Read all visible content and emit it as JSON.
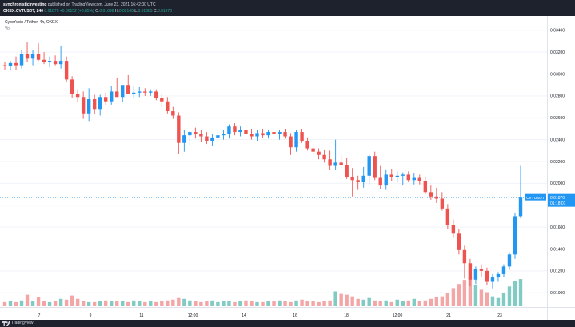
{
  "header": {
    "publisher": "synchronisticinvesting",
    "published_text": "published on TradingView.com, June 23, 2021 16:42:00 UTC",
    "symbol_info": "OKEX:CVTUSDT, 240",
    "last": "0.01870",
    "change": "+0.00152 (+8.85%)",
    "o_label": "O:",
    "o": "0.01698",
    "h_label": "H:",
    "h": "0.02160",
    "l_label": "L:",
    "l": "0.01685",
    "c_label": "C:",
    "c": "0.01870"
  },
  "legend": {
    "title": "CyberVein / Tether, 4h, OKEX",
    "vol": "Vol"
  },
  "price_tag": {
    "symbol": "CVTUSDT",
    "price": "0.01870",
    "countdown": "01:18:01"
  },
  "footer": {
    "brand": "TradingView"
  },
  "colors": {
    "up": "#2196f3",
    "down": "#ef5350",
    "vol_up": "#80cbc4",
    "vol_down": "#f4a6a6",
    "price_line": "#2196f3"
  },
  "chart_data": {
    "type": "candlestick",
    "symbol": "CVTUSDT",
    "timeframe": "240",
    "x_tick_labels": [
      "7",
      "9",
      "11",
      "12:00",
      "14",
      "16",
      "18",
      "12:00",
      "21",
      "23"
    ],
    "y_tick_labels": [
      "0.03400",
      "0.03200",
      "0.03000",
      "0.02800",
      "0.02600",
      "0.02400",
      "0.02200",
      "0.02000",
      "0.01800",
      "0.01600",
      "0.01400",
      "0.01200",
      "0.01000"
    ],
    "ylim": [
      0.0087,
      0.0353
    ],
    "current_price": 0.0187,
    "candles": [
      {
        "o": 0.0308,
        "h": 0.0311,
        "l": 0.0304,
        "c": 0.0307
      },
      {
        "o": 0.0307,
        "h": 0.0312,
        "l": 0.0303,
        "c": 0.031
      },
      {
        "o": 0.031,
        "h": 0.0316,
        "l": 0.0304,
        "c": 0.0308
      },
      {
        "o": 0.0308,
        "h": 0.0322,
        "l": 0.0305,
        "c": 0.0318
      },
      {
        "o": 0.0318,
        "h": 0.0329,
        "l": 0.0311,
        "c": 0.0314
      },
      {
        "o": 0.0314,
        "h": 0.0322,
        "l": 0.0308,
        "c": 0.0318
      },
      {
        "o": 0.0318,
        "h": 0.0328,
        "l": 0.0312,
        "c": 0.0313
      },
      {
        "o": 0.0313,
        "h": 0.032,
        "l": 0.0309,
        "c": 0.0311
      },
      {
        "o": 0.0311,
        "h": 0.0316,
        "l": 0.0306,
        "c": 0.0312
      },
      {
        "o": 0.0312,
        "h": 0.0317,
        "l": 0.0308,
        "c": 0.0309
      },
      {
        "o": 0.0309,
        "h": 0.0326,
        "l": 0.0305,
        "c": 0.0312
      },
      {
        "o": 0.0312,
        "h": 0.0316,
        "l": 0.0293,
        "c": 0.0295
      },
      {
        "o": 0.0295,
        "h": 0.0298,
        "l": 0.0278,
        "c": 0.0282
      },
      {
        "o": 0.0282,
        "h": 0.0286,
        "l": 0.0274,
        "c": 0.0279
      },
      {
        "o": 0.0279,
        "h": 0.0284,
        "l": 0.0259,
        "c": 0.0264
      },
      {
        "o": 0.0264,
        "h": 0.0287,
        "l": 0.0257,
        "c": 0.0277
      },
      {
        "o": 0.0277,
        "h": 0.0281,
        "l": 0.0263,
        "c": 0.0268
      },
      {
        "o": 0.0268,
        "h": 0.0281,
        "l": 0.0262,
        "c": 0.0279
      },
      {
        "o": 0.0279,
        "h": 0.0283,
        "l": 0.0272,
        "c": 0.0275
      },
      {
        "o": 0.0275,
        "h": 0.0289,
        "l": 0.0272,
        "c": 0.0284
      },
      {
        "o": 0.0284,
        "h": 0.0296,
        "l": 0.028,
        "c": 0.0279
      },
      {
        "o": 0.0279,
        "h": 0.0288,
        "l": 0.0274,
        "c": 0.029
      },
      {
        "o": 0.029,
        "h": 0.0299,
        "l": 0.0283,
        "c": 0.0282
      },
      {
        "o": 0.0282,
        "h": 0.0289,
        "l": 0.0278,
        "c": 0.0283
      },
      {
        "o": 0.0283,
        "h": 0.0288,
        "l": 0.0279,
        "c": 0.0284
      },
      {
        "o": 0.0284,
        "h": 0.0287,
        "l": 0.028,
        "c": 0.0283
      },
      {
        "o": 0.0283,
        "h": 0.0286,
        "l": 0.028,
        "c": 0.0284
      },
      {
        "o": 0.0284,
        "h": 0.0286,
        "l": 0.0276,
        "c": 0.0278
      },
      {
        "o": 0.0278,
        "h": 0.0282,
        "l": 0.027,
        "c": 0.0275
      },
      {
        "o": 0.0275,
        "h": 0.0279,
        "l": 0.0264,
        "c": 0.0266
      },
      {
        "o": 0.0266,
        "h": 0.027,
        "l": 0.0259,
        "c": 0.0262
      },
      {
        "o": 0.0262,
        "h": 0.0265,
        "l": 0.0227,
        "c": 0.0237
      },
      {
        "o": 0.0237,
        "h": 0.0249,
        "l": 0.0229,
        "c": 0.0244
      },
      {
        "o": 0.0244,
        "h": 0.0248,
        "l": 0.0235,
        "c": 0.0247
      },
      {
        "o": 0.0247,
        "h": 0.0251,
        "l": 0.0241,
        "c": 0.0245
      },
      {
        "o": 0.0245,
        "h": 0.0249,
        "l": 0.0238,
        "c": 0.0243
      },
      {
        "o": 0.0243,
        "h": 0.0247,
        "l": 0.0236,
        "c": 0.0239
      },
      {
        "o": 0.0239,
        "h": 0.0245,
        "l": 0.0234,
        "c": 0.0242
      },
      {
        "o": 0.0242,
        "h": 0.0249,
        "l": 0.0237,
        "c": 0.0244
      },
      {
        "o": 0.0244,
        "h": 0.0249,
        "l": 0.024,
        "c": 0.0245
      },
      {
        "o": 0.0245,
        "h": 0.0254,
        "l": 0.0241,
        "c": 0.0252
      },
      {
        "o": 0.0252,
        "h": 0.0255,
        "l": 0.0244,
        "c": 0.0247
      },
      {
        "o": 0.0247,
        "h": 0.0252,
        "l": 0.0243,
        "c": 0.0249
      },
      {
        "o": 0.0249,
        "h": 0.0252,
        "l": 0.0243,
        "c": 0.0245
      },
      {
        "o": 0.0245,
        "h": 0.025,
        "l": 0.024,
        "c": 0.0243
      },
      {
        "o": 0.0243,
        "h": 0.0249,
        "l": 0.0239,
        "c": 0.0246
      },
      {
        "o": 0.0246,
        "h": 0.025,
        "l": 0.0242,
        "c": 0.0244
      },
      {
        "o": 0.0244,
        "h": 0.0249,
        "l": 0.0241,
        "c": 0.0247
      },
      {
        "o": 0.0247,
        "h": 0.025,
        "l": 0.0242,
        "c": 0.0245
      },
      {
        "o": 0.0245,
        "h": 0.0249,
        "l": 0.024,
        "c": 0.0247
      },
      {
        "o": 0.0247,
        "h": 0.025,
        "l": 0.0241,
        "c": 0.0243
      },
      {
        "o": 0.0243,
        "h": 0.0246,
        "l": 0.0226,
        "c": 0.0233
      },
      {
        "o": 0.0233,
        "h": 0.0249,
        "l": 0.0229,
        "c": 0.0247
      },
      {
        "o": 0.0247,
        "h": 0.025,
        "l": 0.0237,
        "c": 0.0239
      },
      {
        "o": 0.0239,
        "h": 0.0242,
        "l": 0.023,
        "c": 0.0232
      },
      {
        "o": 0.0232,
        "h": 0.0236,
        "l": 0.0226,
        "c": 0.0229
      },
      {
        "o": 0.0229,
        "h": 0.0232,
        "l": 0.0222,
        "c": 0.0226
      },
      {
        "o": 0.0226,
        "h": 0.0231,
        "l": 0.0219,
        "c": 0.0222
      },
      {
        "o": 0.0222,
        "h": 0.023,
        "l": 0.0212,
        "c": 0.0216
      },
      {
        "o": 0.0216,
        "h": 0.024,
        "l": 0.0212,
        "c": 0.0219
      },
      {
        "o": 0.0219,
        "h": 0.0226,
        "l": 0.0214,
        "c": 0.0217
      },
      {
        "o": 0.0217,
        "h": 0.0223,
        "l": 0.0204,
        "c": 0.0206
      },
      {
        "o": 0.0206,
        "h": 0.0214,
        "l": 0.0188,
        "c": 0.0203
      },
      {
        "o": 0.0203,
        "h": 0.0207,
        "l": 0.0194,
        "c": 0.0201
      },
      {
        "o": 0.0201,
        "h": 0.0215,
        "l": 0.0196,
        "c": 0.0207
      },
      {
        "o": 0.0207,
        "h": 0.0227,
        "l": 0.0199,
        "c": 0.0225
      },
      {
        "o": 0.0225,
        "h": 0.0229,
        "l": 0.0203,
        "c": 0.0205
      },
      {
        "o": 0.0205,
        "h": 0.0216,
        "l": 0.0195,
        "c": 0.0198
      },
      {
        "o": 0.0198,
        "h": 0.0212,
        "l": 0.0194,
        "c": 0.0208
      },
      {
        "o": 0.0208,
        "h": 0.0213,
        "l": 0.0202,
        "c": 0.0206
      },
      {
        "o": 0.0206,
        "h": 0.0211,
        "l": 0.0201,
        "c": 0.0207
      },
      {
        "o": 0.0207,
        "h": 0.021,
        "l": 0.0198,
        "c": 0.0208
      },
      {
        "o": 0.0208,
        "h": 0.0211,
        "l": 0.0201,
        "c": 0.0203
      },
      {
        "o": 0.0203,
        "h": 0.0209,
        "l": 0.0199,
        "c": 0.0205
      },
      {
        "o": 0.0205,
        "h": 0.0208,
        "l": 0.0199,
        "c": 0.0202
      },
      {
        "o": 0.0202,
        "h": 0.0206,
        "l": 0.019,
        "c": 0.0192
      },
      {
        "o": 0.0192,
        "h": 0.0198,
        "l": 0.0185,
        "c": 0.0188
      },
      {
        "o": 0.0188,
        "h": 0.0196,
        "l": 0.0182,
        "c": 0.0186
      },
      {
        "o": 0.0186,
        "h": 0.0192,
        "l": 0.0175,
        "c": 0.0177
      },
      {
        "o": 0.0177,
        "h": 0.0181,
        "l": 0.0158,
        "c": 0.0162
      },
      {
        "o": 0.0162,
        "h": 0.0167,
        "l": 0.015,
        "c": 0.0154
      },
      {
        "o": 0.0154,
        "h": 0.0158,
        "l": 0.0135,
        "c": 0.0139
      },
      {
        "o": 0.0139,
        "h": 0.0143,
        "l": 0.0113,
        "c": 0.0127
      },
      {
        "o": 0.0127,
        "h": 0.0131,
        "l": 0.0106,
        "c": 0.0112
      },
      {
        "o": 0.0112,
        "h": 0.0124,
        "l": 0.0108,
        "c": 0.0122
      },
      {
        "o": 0.0122,
        "h": 0.0126,
        "l": 0.0114,
        "c": 0.012
      },
      {
        "o": 0.012,
        "h": 0.0123,
        "l": 0.0107,
        "c": 0.011
      },
      {
        "o": 0.011,
        "h": 0.0117,
        "l": 0.0104,
        "c": 0.0114
      },
      {
        "o": 0.0114,
        "h": 0.0119,
        "l": 0.011,
        "c": 0.0117
      },
      {
        "o": 0.0117,
        "h": 0.0126,
        "l": 0.0114,
        "c": 0.0124
      },
      {
        "o": 0.0124,
        "h": 0.0137,
        "l": 0.0121,
        "c": 0.0135
      },
      {
        "o": 0.0135,
        "h": 0.0173,
        "l": 0.0131,
        "c": 0.017
      },
      {
        "o": 0.017,
        "h": 0.0216,
        "l": 0.0168,
        "c": 0.0187
      }
    ],
    "volume": [
      5,
      6,
      5,
      7,
      14,
      6,
      11,
      6,
      5,
      6,
      9,
      8,
      13,
      9,
      6,
      5,
      5,
      6,
      7,
      6,
      6,
      6,
      5,
      7,
      6,
      5,
      6,
      5,
      6,
      7,
      8,
      10,
      9,
      7,
      6,
      5,
      6,
      7,
      5,
      6,
      6,
      5,
      6,
      7,
      6,
      5,
      5,
      6,
      6,
      7,
      6,
      5,
      7,
      8,
      6,
      6,
      5,
      6,
      7,
      18,
      15,
      14,
      12,
      9,
      8,
      10,
      7,
      6,
      7,
      5,
      8,
      6,
      7,
      9,
      6,
      7,
      9,
      11,
      12,
      16,
      22,
      27,
      32,
      35,
      26,
      20,
      17,
      12,
      10,
      16,
      24,
      31,
      33
    ]
  }
}
